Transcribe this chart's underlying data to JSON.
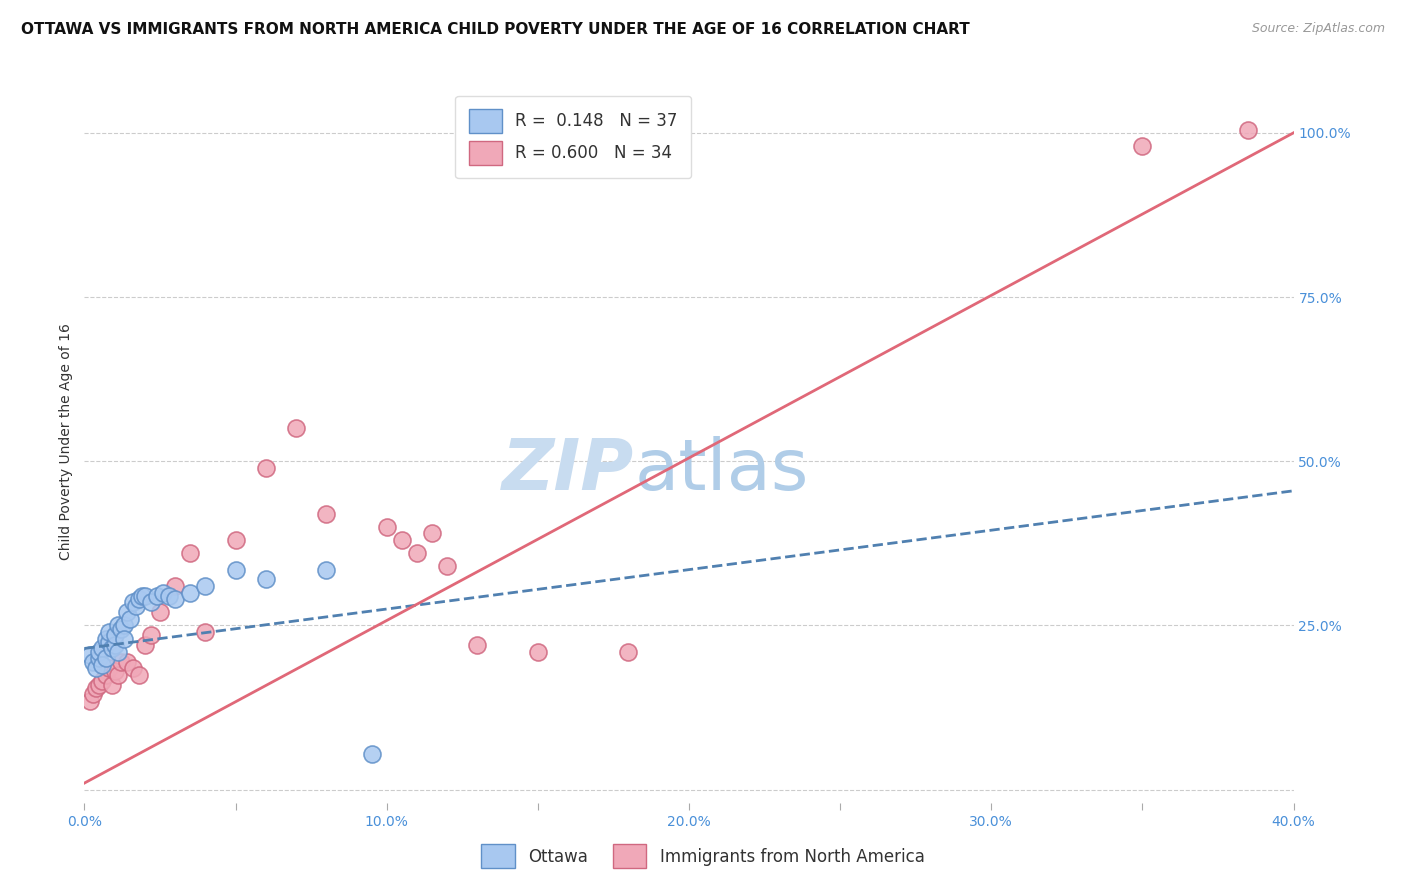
{
  "title": "OTTAWA VS IMMIGRANTS FROM NORTH AMERICA CHILD POVERTY UNDER THE AGE OF 16 CORRELATION CHART",
  "source": "Source: ZipAtlas.com",
  "ylabel": "Child Poverty Under the Age of 16",
  "watermark_zip": "ZIP",
  "watermark_atlas": "atlas",
  "xlim": [
    0.0,
    0.4
  ],
  "ylim": [
    -0.02,
    1.08
  ],
  "xticks": [
    0.0,
    0.05,
    0.1,
    0.15,
    0.2,
    0.25,
    0.3,
    0.35,
    0.4
  ],
  "xticklabels": [
    "0.0%",
    "",
    "10.0%",
    "",
    "20.0%",
    "",
    "30.0%",
    "",
    "40.0%"
  ],
  "ytick_right_vals": [
    0.0,
    0.25,
    0.5,
    0.75,
    1.0
  ],
  "ytick_right_labels": [
    "",
    "25.0%",
    "50.0%",
    "75.0%",
    "100.0%"
  ],
  "blue_color": "#A8C8F0",
  "pink_color": "#F0A8B8",
  "blue_edge_color": "#6090C8",
  "pink_edge_color": "#D06880",
  "blue_line_color": "#5080B0",
  "pink_line_color": "#E06878",
  "legend_blue_label": "R =  0.148   N = 37",
  "legend_pink_label": "R = 0.600   N = 34",
  "blue_x": [
    0.002,
    0.003,
    0.004,
    0.005,
    0.005,
    0.006,
    0.006,
    0.007,
    0.007,
    0.008,
    0.008,
    0.009,
    0.01,
    0.01,
    0.011,
    0.011,
    0.012,
    0.013,
    0.013,
    0.014,
    0.015,
    0.016,
    0.017,
    0.018,
    0.019,
    0.02,
    0.022,
    0.024,
    0.026,
    0.028,
    0.03,
    0.035,
    0.04,
    0.05,
    0.06,
    0.08,
    0.095
  ],
  "blue_y": [
    0.205,
    0.195,
    0.185,
    0.2,
    0.21,
    0.215,
    0.19,
    0.23,
    0.2,
    0.225,
    0.24,
    0.215,
    0.22,
    0.235,
    0.25,
    0.21,
    0.245,
    0.25,
    0.23,
    0.27,
    0.26,
    0.285,
    0.28,
    0.29,
    0.295,
    0.295,
    0.285,
    0.295,
    0.3,
    0.295,
    0.29,
    0.3,
    0.31,
    0.335,
    0.32,
    0.335,
    0.055
  ],
  "pink_x": [
    0.002,
    0.003,
    0.004,
    0.005,
    0.006,
    0.007,
    0.008,
    0.009,
    0.01,
    0.011,
    0.012,
    0.014,
    0.016,
    0.018,
    0.02,
    0.022,
    0.025,
    0.03,
    0.035,
    0.04,
    0.05,
    0.06,
    0.07,
    0.08,
    0.1,
    0.105,
    0.11,
    0.115,
    0.12,
    0.13,
    0.15,
    0.18,
    0.35,
    0.385
  ],
  "pink_y": [
    0.135,
    0.145,
    0.155,
    0.16,
    0.165,
    0.175,
    0.185,
    0.16,
    0.18,
    0.175,
    0.195,
    0.195,
    0.185,
    0.175,
    0.22,
    0.235,
    0.27,
    0.31,
    0.36,
    0.24,
    0.38,
    0.49,
    0.55,
    0.42,
    0.4,
    0.38,
    0.36,
    0.39,
    0.34,
    0.22,
    0.21,
    0.21,
    0.98,
    1.005
  ],
  "pink_line_x0": 0.0,
  "pink_line_y0": 0.01,
  "pink_line_x1": 0.4,
  "pink_line_y1": 1.0,
  "blue_line_x0": 0.0,
  "blue_line_y0": 0.215,
  "blue_line_x1": 0.4,
  "blue_line_y1": 0.455,
  "grid_color": "#CCCCCC",
  "background_color": "#FFFFFF",
  "title_fontsize": 11,
  "axis_label_fontsize": 10,
  "tick_fontsize": 10,
  "legend_fontsize": 12,
  "source_fontsize": 9
}
